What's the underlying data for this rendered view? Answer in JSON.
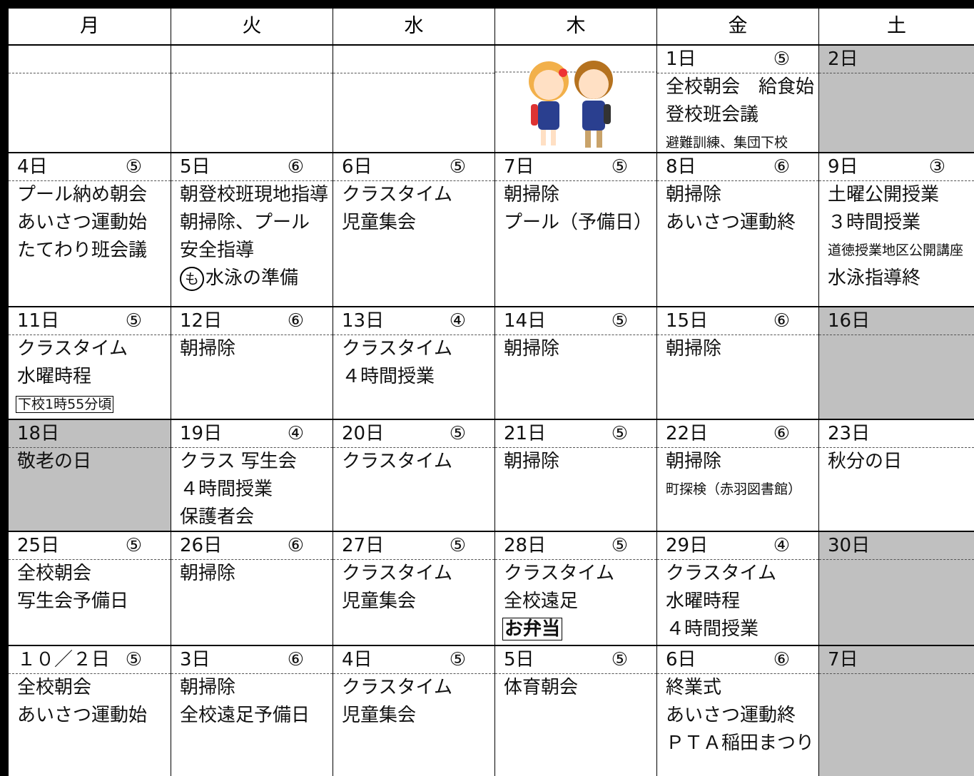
{
  "header": {
    "days": [
      "月",
      "火",
      "水",
      "木",
      "金",
      "土"
    ]
  },
  "weeks": [
    [
      {
        "lines": []
      },
      {
        "lines": []
      },
      {
        "lines": []
      },
      {
        "illustration": true,
        "lines": []
      },
      {
        "date": "1日",
        "period": "⑤",
        "lines": [
          "全校朝会　給食始",
          "登校班会議",
          {
            "text": "避難訓練、集団下校",
            "style": "small"
          }
        ]
      },
      {
        "date": "2日",
        "shaded": true,
        "lines": []
      }
    ],
    [
      {
        "date": "4日",
        "period": "⑤",
        "lines": [
          "プール納め朝会",
          "あいさつ運動始",
          "たてわり班会議"
        ]
      },
      {
        "date": "5日",
        "period": "⑥",
        "lines": [
          "朝登校班現地指導",
          "朝掃除、プール",
          "安全指導",
          {
            "prefix": "も",
            "text": "水泳の準備"
          }
        ]
      },
      {
        "date": "6日",
        "period": "⑤",
        "lines": [
          "クラスタイム",
          "児童集会"
        ]
      },
      {
        "date": "7日",
        "period": "⑤",
        "lines": [
          "朝掃除",
          "プール（予備日）"
        ]
      },
      {
        "date": "8日",
        "period": "⑥",
        "lines": [
          "朝掃除",
          "あいさつ運動終"
        ]
      },
      {
        "date": "9日",
        "period": "③",
        "lines": [
          "土曜公開授業",
          "３時間授業",
          {
            "text": "道徳授業地区公開講座",
            "style": "small"
          },
          "水泳指導終"
        ]
      }
    ],
    [
      {
        "date": "11日",
        "period": "⑤",
        "lines": [
          "クラスタイム",
          "水曜時程",
          {
            "text": "下校1時55分頃",
            "style": "boxed"
          }
        ]
      },
      {
        "date": "12日",
        "period": "⑥",
        "lines": [
          "朝掃除"
        ]
      },
      {
        "date": "13日",
        "period": "④",
        "lines": [
          "クラスタイム",
          "４時間授業"
        ]
      },
      {
        "date": "14日",
        "period": "⑤",
        "lines": [
          "朝掃除"
        ]
      },
      {
        "date": "15日",
        "period": "⑥",
        "lines": [
          "朝掃除"
        ]
      },
      {
        "date": "16日",
        "shaded": true,
        "lines": []
      }
    ],
    [
      {
        "date": "18日",
        "shaded": true,
        "lines": [
          "敬老の日"
        ]
      },
      {
        "date": "19日",
        "period": "④",
        "lines": [
          "クラス 写生会",
          "４時間授業",
          "保護者会"
        ]
      },
      {
        "date": "20日",
        "period": "⑤",
        "lines": [
          "クラスタイム"
        ]
      },
      {
        "date": "21日",
        "period": "⑤",
        "lines": [
          "朝掃除"
        ]
      },
      {
        "date": "22日",
        "period": "⑥",
        "lines": [
          "朝掃除",
          {
            "text": "町探検（赤羽図書館）",
            "style": "small"
          }
        ]
      },
      {
        "date": "23日",
        "lines": [
          "秋分の日"
        ]
      }
    ],
    [
      {
        "date": "25日",
        "period": "⑤",
        "lines": [
          "全校朝会",
          "写生会予備日"
        ]
      },
      {
        "date": "26日",
        "period": "⑥",
        "lines": [
          "朝掃除"
        ]
      },
      {
        "date": "27日",
        "period": "⑤",
        "lines": [
          "クラスタイム",
          "児童集会"
        ]
      },
      {
        "date": "28日",
        "period": "⑤",
        "lines": [
          "クラスタイム",
          "全校遠足",
          {
            "text": "お弁当",
            "style": "boxed-bold"
          }
        ]
      },
      {
        "date": "29日",
        "period": "④",
        "lines": [
          "クラスタイム",
          "水曜時程",
          "４時間授業"
        ]
      },
      {
        "date": "30日",
        "shaded": true,
        "lines": []
      }
    ],
    [
      {
        "date": "１０／２日",
        "period": "⑤",
        "lines": [
          "全校朝会",
          "あいさつ運動始"
        ]
      },
      {
        "date": "3日",
        "period": "⑥",
        "lines": [
          "朝掃除",
          "全校遠足予備日"
        ]
      },
      {
        "date": "4日",
        "period": "⑤",
        "lines": [
          "クラスタイム",
          "児童集会"
        ]
      },
      {
        "date": "5日",
        "period": "⑤",
        "lines": [
          "体育朝会"
        ]
      },
      {
        "date": "6日",
        "period": "⑥",
        "lines": [
          "終業式",
          "あいさつ運動終",
          "ＰＴＡ稲田まつり"
        ]
      },
      {
        "date": "7日",
        "shaded": true,
        "lines": []
      }
    ]
  ]
}
